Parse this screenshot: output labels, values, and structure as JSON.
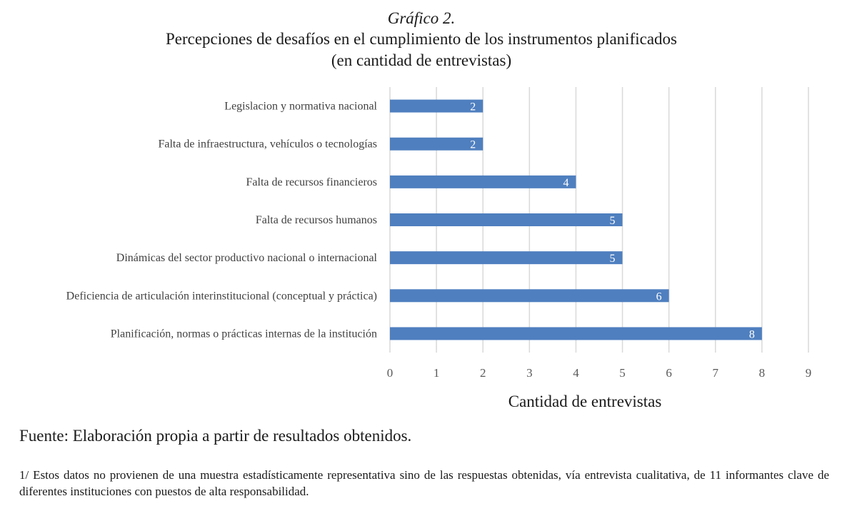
{
  "figure": {
    "number": "Gráfico 2.",
    "title": "Percepciones de desafíos en el cumplimiento de los instrumentos planificados",
    "subtitle": "(en cantidad de entrevistas)"
  },
  "colors": {
    "bar": "#4f7fbf",
    "grid": "#d9d9d9"
  },
  "chart_data": {
    "type": "bar",
    "orientation": "horizontal",
    "categories": [
      "Legislacion y normativa nacional",
      "Falta de infraestructura, vehículos o tecnologías",
      "Falta de recursos financieros",
      "Falta de recursos humanos",
      "Dinámicas del sector productivo nacional o internacional",
      "Deficiencia de articulación interinstitucional (conceptual y práctica)",
      "Planificación, normas o prácticas internas de la institución"
    ],
    "values": [
      2,
      2,
      4,
      5,
      5,
      6,
      8
    ],
    "xlabel": "Cantidad de entrevistas",
    "ylabel": "",
    "xlim": [
      0,
      9
    ],
    "xticks": [
      0,
      1,
      2,
      3,
      4,
      5,
      6,
      7,
      8,
      9
    ],
    "grid": true,
    "data_labels": true
  },
  "footer": {
    "source": "Fuente: Elaboración propia a partir de resultados obtenidos.",
    "note": "1/ Estos datos no provienen de una muestra estadísticamente representativa sino de las respuestas obtenidas, vía entrevista cualitativa, de 11 informantes clave de diferentes instituciones con puestos de alta responsabilidad."
  }
}
